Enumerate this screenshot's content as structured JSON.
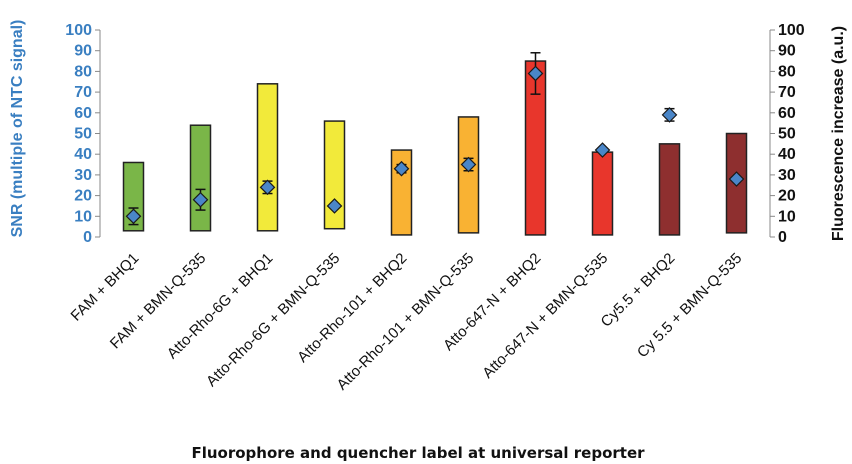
{
  "chart_data": {
    "type": "bar",
    "title": "",
    "xlabel": "Fluorophore and quencher label at universal reporter",
    "ylabel": "SNR (multiple of  NTC signal)",
    "y2label": "Fluorescence  increase  (a.u.)",
    "ylim": [
      0,
      100
    ],
    "y2lim": [
      0,
      100
    ],
    "yticks": [
      0,
      10,
      20,
      30,
      40,
      50,
      60,
      70,
      80,
      90,
      100
    ],
    "y2ticks": [
      0,
      10,
      20,
      30,
      40,
      50,
      60,
      70,
      80,
      90,
      100
    ],
    "grid": false,
    "legend": "none",
    "categories": [
      "FAM + BHQ1",
      "FAM + BMN-Q-535",
      "Atto-Rho-6G + BHQ1",
      "Atto-Rho-6G + BMN-Q-535",
      "Atto-Rho-101 + BHQ2",
      "Atto-Rho-101 + BMN-Q-535",
      "Atto-647-N + BHQ2",
      "Atto-647-N + BMN-Q-535",
      "Cy5.5 + BHQ2",
      "Cy 5.5 + BMN-Q-535"
    ],
    "bars": {
      "axis": "right",
      "bottoms": [
        3,
        3,
        3,
        4,
        1,
        2,
        1,
        1,
        1,
        2
      ],
      "tops": [
        36,
        54,
        74,
        56,
        42,
        58,
        85,
        41,
        45,
        50
      ],
      "colors": [
        "#7ab648",
        "#7ab648",
        "#f2ea3a",
        "#f2ea3a",
        "#f9b233",
        "#f9b233",
        "#e8362c",
        "#e8362c",
        "#8e2f2f",
        "#8e2f2f"
      ]
    },
    "points": {
      "axis": "left",
      "values": [
        10,
        18,
        24,
        15,
        33,
        35,
        79,
        42,
        59,
        28
      ],
      "errors": [
        4,
        5,
        3,
        0,
        2,
        3,
        10,
        1,
        3,
        0
      ],
      "color": "#4a86c8"
    },
    "colors": {
      "left_axis_text": "#3a7fc1",
      "right_axis_text": "#111111"
    }
  }
}
